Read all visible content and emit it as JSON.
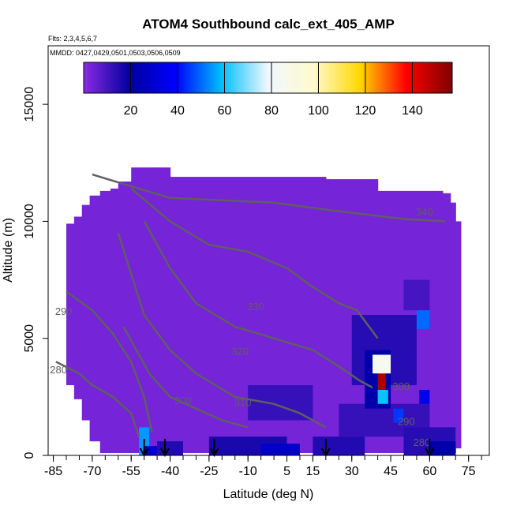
{
  "chart_data": {
    "type": "heatmap",
    "title": "ATOM4 Southbound calc_ext_405_AMP",
    "subtitle_flights": "Flts: 2,3,4,5,6,7",
    "subtitle_dates": "MMDD: 0427,0429,0501,0503,0506,0509",
    "xlabel": "Latitude (deg N)",
    "ylabel": "Altitude (m)",
    "xlim": [
      -87,
      83
    ],
    "ylim": [
      0,
      17500
    ],
    "x_ticks": [
      -85,
      -70,
      -55,
      -40,
      -25,
      -10,
      5,
      15,
      30,
      45,
      60,
      75
    ],
    "y_ticks": [
      0,
      5000,
      10000,
      15000
    ],
    "colorbar": {
      "range": [
        0,
        157
      ],
      "ticks": [
        20,
        40,
        60,
        80,
        100,
        120,
        140
      ],
      "colors": [
        "#8a2be2",
        "#0000a0",
        "#0000ff",
        "#00bfff",
        "#f0f8ff",
        "#fffacd",
        "#ffd700",
        "#ff0000",
        "#800000"
      ]
    },
    "background_value": 3,
    "curtain": {
      "x": [
        -80,
        -77,
        -74,
        -71,
        -67,
        -63,
        -60,
        -55,
        -50,
        -45,
        -40,
        -30,
        -20,
        -10,
        0,
        10,
        20,
        30,
        40,
        50,
        55,
        60,
        65,
        68,
        70,
        72
      ],
      "top": [
        9900,
        10200,
        10700,
        11100,
        11300,
        11400,
        11700,
        12300,
        12300,
        12300,
        12300,
        11900,
        11900,
        11900,
        11900,
        11900,
        11900,
        11800,
        11800,
        11300,
        11300,
        11300,
        11300,
        11200,
        10800,
        10000
      ],
      "bottom": [
        3000,
        2400,
        1500,
        600,
        100,
        100,
        100,
        100,
        100,
        100,
        100,
        100,
        100,
        100,
        100,
        100,
        100,
        100,
        100,
        100,
        100,
        100,
        100,
        100,
        100,
        300
      ]
    },
    "features": [
      {
        "x0": -52,
        "x1": -48,
        "y0": 0,
        "y1": 1200,
        "value": 55
      },
      {
        "x0": -50,
        "x1": -45,
        "y0": 0,
        "y1": 400,
        "value": 30
      },
      {
        "x0": -45,
        "x1": -35,
        "y0": 0,
        "y1": 600,
        "value": 15
      },
      {
        "x0": -25,
        "x1": 5,
        "y0": 0,
        "y1": 800,
        "value": 16
      },
      {
        "x0": -10,
        "x1": 15,
        "y0": 1500,
        "y1": 3000,
        "value": 12
      },
      {
        "x0": -5,
        "x1": 10,
        "y0": 0,
        "y1": 500,
        "value": 28
      },
      {
        "x0": 15,
        "x1": 35,
        "y0": 0,
        "y1": 800,
        "value": 15
      },
      {
        "x0": 25,
        "x1": 60,
        "y0": 800,
        "y1": 2200,
        "value": 12
      },
      {
        "x0": 30,
        "x1": 55,
        "y0": 3000,
        "y1": 6000,
        "value": 14
      },
      {
        "x0": 35,
        "x1": 45,
        "y0": 2000,
        "y1": 4500,
        "value": 22
      },
      {
        "x0": 40,
        "x1": 43,
        "y0": 2800,
        "y1": 3600,
        "value": 150
      },
      {
        "x0": 38,
        "x1": 45,
        "y0": 3500,
        "y1": 4300,
        "value": 85
      },
      {
        "x0": 40,
        "x1": 44,
        "y0": 2200,
        "y1": 2800,
        "value": 60
      },
      {
        "x0": 55,
        "x1": 60,
        "y0": 5400,
        "y1": 6200,
        "value": 50
      },
      {
        "x0": 50,
        "x1": 60,
        "y0": 6200,
        "y1": 7500,
        "value": 10
      },
      {
        "x0": 46,
        "x1": 50,
        "y0": 1400,
        "y1": 2000,
        "value": 45
      },
      {
        "x0": 56,
        "x1": 60,
        "y0": 2200,
        "y1": 2800,
        "value": 35
      },
      {
        "x0": 50,
        "x1": 70,
        "y0": 0,
        "y1": 1200,
        "value": 14
      },
      {
        "x0": 60,
        "x1": 70,
        "y0": 0,
        "y1": 600,
        "value": 22
      }
    ],
    "contours": [
      {
        "label": "340",
        "points": [
          [
            -70,
            12000
          ],
          [
            -40,
            11000
          ],
          [
            0,
            10800
          ],
          [
            20,
            10500
          ],
          [
            35,
            10300
          ],
          [
            50,
            10100
          ],
          [
            66,
            10000
          ]
        ]
      },
      {
        "label": "330",
        "points": [
          [
            -55,
            11400
          ],
          [
            -40,
            10000
          ],
          [
            -25,
            9000
          ],
          [
            -10,
            8700
          ],
          [
            5,
            8000
          ],
          [
            15,
            7200
          ],
          [
            25,
            6500
          ],
          [
            32,
            6200
          ],
          [
            40,
            5000
          ]
        ]
      },
      {
        "label": "320",
        "points": [
          [
            -50,
            10000
          ],
          [
            -40,
            8000
          ],
          [
            -30,
            6500
          ],
          [
            -15,
            5500
          ],
          [
            0,
            5000
          ],
          [
            15,
            4500
          ],
          [
            25,
            3800
          ],
          [
            33,
            3200
          ],
          [
            38,
            2900
          ]
        ]
      },
      {
        "label": "310",
        "points": [
          [
            -60,
            9500
          ],
          [
            -50,
            6000
          ],
          [
            -40,
            4500
          ],
          [
            -30,
            3500
          ],
          [
            -15,
            2500
          ],
          [
            0,
            2200
          ],
          [
            10,
            1800
          ],
          [
            20,
            1200
          ]
        ]
      },
      {
        "label": "300",
        "points": [
          [
            -58,
            5500
          ],
          [
            -48,
            3500
          ],
          [
            -40,
            2500
          ],
          [
            -30,
            2000
          ],
          [
            -20,
            1500
          ],
          [
            -10,
            1200
          ]
        ]
      },
      {
        "label": "290",
        "points": [
          [
            -80,
            7000
          ],
          [
            -70,
            6200
          ],
          [
            -62,
            5200
          ],
          [
            -55,
            4000
          ],
          [
            -50,
            2500
          ],
          [
            -47,
            1000
          ]
        ]
      },
      {
        "label": "280",
        "points": [
          [
            -84,
            4000
          ],
          [
            -75,
            3500
          ],
          [
            -70,
            3000
          ],
          [
            -62,
            2500
          ],
          [
            -55,
            1800
          ],
          [
            -52,
            800
          ]
        ]
      }
    ],
    "contour_labels": [
      {
        "text": "340",
        "x": 58,
        "y": 10250
      },
      {
        "text": "330",
        "x": -7,
        "y": 6200
      },
      {
        "text": "320",
        "x": -13,
        "y": 4300
      },
      {
        "text": "310",
        "x": -12,
        "y": 2100
      },
      {
        "text": "300",
        "x": -35,
        "y": 2200
      },
      {
        "text": "290",
        "x": -81,
        "y": 6000
      },
      {
        "text": "280",
        "x": -83,
        "y": 3500
      },
      {
        "text": "300",
        "x": 49,
        "y": 2800
      },
      {
        "text": "290",
        "x": 51,
        "y": 1300
      },
      {
        "text": "280",
        "x": 57,
        "y": 400
      }
    ],
    "arrows_x": [
      -50,
      -42,
      -23,
      20,
      60
    ]
  }
}
